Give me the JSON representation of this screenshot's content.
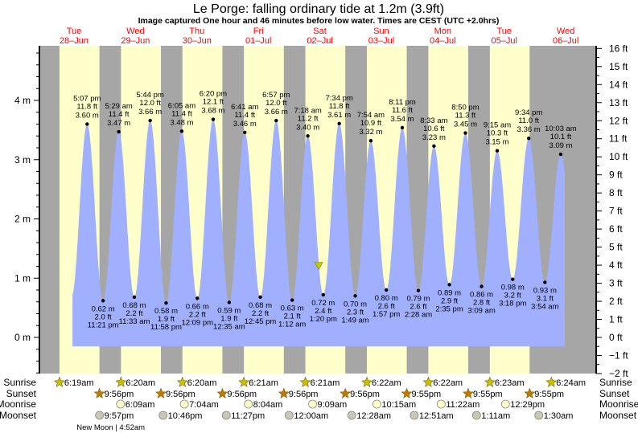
{
  "chart_data": {
    "type": "area",
    "title": "Le Porge: falling  ordinary tide at 1.2m (3.9ft)",
    "subtitle": "Image captured One hour and 46 minutes before low water. Times are CEST (UTC +2.0hrs)",
    "days": [
      {
        "dow": "Tue",
        "date": "28–Jun"
      },
      {
        "dow": "Wed",
        "date": "29–Jun"
      },
      {
        "dow": "Thu",
        "date": "30–Jun"
      },
      {
        "dow": "Fri",
        "date": "01–Jul"
      },
      {
        "dow": "Sat",
        "date": "02–Jul"
      },
      {
        "dow": "Sun",
        "date": "03–Jul"
      },
      {
        "dow": "Mon",
        "date": "04–Jul"
      },
      {
        "dow": "Tue",
        "date": "05–Jul"
      },
      {
        "dow": "Wed",
        "date": "06–Jul"
      }
    ],
    "y_left": {
      "unit": "m",
      "ticks": [
        "0 m",
        "1 m",
        "2 m",
        "3 m",
        "4 m"
      ],
      "range": [
        -0.61,
        4.92
      ]
    },
    "y_right": {
      "unit": "ft",
      "ticks": [
        "−2 ft",
        "−1 ft",
        "0 ft",
        "1 ft",
        "2 ft",
        "3 ft",
        "4 ft",
        "5 ft",
        "6 ft",
        "7 ft",
        "8 ft",
        "9 ft",
        "10 ft",
        "11 ft",
        "12 ft",
        "13 ft",
        "14 ft",
        "15 ft",
        "16 ft"
      ]
    },
    "current_level_m": 1.2,
    "current_time": "11:34am",
    "current_day": 4,
    "extremes": [
      {
        "day": 0,
        "type": "high",
        "time": "5:07 pm",
        "ft": "11.8 ft",
        "m": "3.60 m"
      },
      {
        "day": 0,
        "type": "low",
        "time": "11:21 pm",
        "ft": "2.0 ft",
        "m": "0.62 m"
      },
      {
        "day": 1,
        "type": "high",
        "time": "5:29 am",
        "ft": "11.4 ft",
        "m": "3.47 m"
      },
      {
        "day": 1,
        "type": "low",
        "time": "11:33 am",
        "ft": "2.2 ft",
        "m": "0.68 m"
      },
      {
        "day": 1,
        "type": "high",
        "time": "5:44 pm",
        "ft": "12.0 ft",
        "m": "3.66 m"
      },
      {
        "day": 1,
        "type": "low",
        "time": "11:58 pm",
        "ft": "1.9 ft",
        "m": "0.58 m"
      },
      {
        "day": 2,
        "type": "high",
        "time": "6:05 am",
        "ft": "11.4 ft",
        "m": "3.48 m"
      },
      {
        "day": 2,
        "type": "low",
        "time": "12:09 pm",
        "ft": "2.2 ft",
        "m": "0.66 m"
      },
      {
        "day": 2,
        "type": "high",
        "time": "6:20 pm",
        "ft": "12.1 ft",
        "m": "3.68 m"
      },
      {
        "day": 3,
        "type": "low",
        "time": "12:35 am",
        "ft": "1.9 ft",
        "m": "0.59 m"
      },
      {
        "day": 3,
        "type": "high",
        "time": "6:41 am",
        "ft": "11.4 ft",
        "m": "3.46 m"
      },
      {
        "day": 3,
        "type": "low",
        "time": "12:45 pm",
        "ft": "2.2 ft",
        "m": "0.68 m"
      },
      {
        "day": 3,
        "type": "high",
        "time": "6:57 pm",
        "ft": "12.0 ft",
        "m": "3.66 m"
      },
      {
        "day": 4,
        "type": "low",
        "time": "1:12 am",
        "ft": "2.1 ft",
        "m": "0.63 m"
      },
      {
        "day": 4,
        "type": "high",
        "time": "7:18 am",
        "ft": "11.2 ft",
        "m": "3.40 m"
      },
      {
        "day": 4,
        "type": "low",
        "time": "1:20 pm",
        "ft": "2.4 ft",
        "m": "0.72 m"
      },
      {
        "day": 4,
        "type": "high",
        "time": "7:34 pm",
        "ft": "11.8 ft",
        "m": "3.61 m"
      },
      {
        "day": 5,
        "type": "low",
        "time": "1:49 am",
        "ft": "2.3 ft",
        "m": "0.70 m"
      },
      {
        "day": 5,
        "type": "high",
        "time": "7:54 am",
        "ft": "10.9 ft",
        "m": "3.32 m"
      },
      {
        "day": 5,
        "type": "low",
        "time": "1:57 pm",
        "ft": "2.6 ft",
        "m": "0.80 m"
      },
      {
        "day": 5,
        "type": "high",
        "time": "8:11 pm",
        "ft": "11.6 ft",
        "m": "3.54 m"
      },
      {
        "day": 6,
        "type": "low",
        "time": "2:28 am",
        "ft": "2.6 ft",
        "m": "0.79 m"
      },
      {
        "day": 6,
        "type": "high",
        "time": "8:33 am",
        "ft": "10.6 ft",
        "m": "3.23 m"
      },
      {
        "day": 6,
        "type": "low",
        "time": "2:35 pm",
        "ft": "2.9 ft",
        "m": "0.89 m"
      },
      {
        "day": 6,
        "type": "high",
        "time": "8:50 pm",
        "ft": "11.3 ft",
        "m": "3.45 m"
      },
      {
        "day": 7,
        "type": "low",
        "time": "3:09 am",
        "ft": "2.8 ft",
        "m": "0.86 m"
      },
      {
        "day": 7,
        "type": "high",
        "time": "9:15 am",
        "ft": "10.3 ft",
        "m": "3.15 m"
      },
      {
        "day": 7,
        "type": "low",
        "time": "3:18 pm",
        "ft": "3.2 ft",
        "m": "0.98 m"
      },
      {
        "day": 7,
        "type": "high",
        "time": "9:34 pm",
        "ft": "11.0 ft",
        "m": "3.36 m"
      },
      {
        "day": 8,
        "type": "low",
        "time": "3:54 am",
        "ft": "3.1 ft",
        "m": "0.93 m"
      },
      {
        "day": 8,
        "type": "high",
        "time": "10:03 am",
        "ft": "10.1 ft",
        "m": "3.09 m"
      }
    ],
    "row_labels": {
      "sunrise": "Sunrise",
      "sunset": "Sunset",
      "moonrise": "Moonrise",
      "moonset": "Moonset"
    },
    "sunrise": [
      {
        "day": 0,
        "time": "6:19am"
      },
      {
        "day": 1,
        "time": "6:20am"
      },
      {
        "day": 2,
        "time": "6:20am"
      },
      {
        "day": 3,
        "time": "6:21am"
      },
      {
        "day": 4,
        "time": "6:21am"
      },
      {
        "day": 5,
        "time": "6:22am"
      },
      {
        "day": 6,
        "time": "6:22am"
      },
      {
        "day": 7,
        "time": "6:23am"
      },
      {
        "day": 8,
        "time": "6:24am"
      }
    ],
    "sunset": [
      {
        "day": 0,
        "time": "9:56pm"
      },
      {
        "day": 1,
        "time": "9:56pm"
      },
      {
        "day": 2,
        "time": "9:56pm"
      },
      {
        "day": 3,
        "time": "9:56pm"
      },
      {
        "day": 4,
        "time": "9:56pm"
      },
      {
        "day": 5,
        "time": "9:55pm"
      },
      {
        "day": 6,
        "time": "9:55pm"
      },
      {
        "day": 7,
        "time": "9:55pm"
      }
    ],
    "moonrise": [
      {
        "day": 1,
        "time": "6:09am"
      },
      {
        "day": 2,
        "time": "7:04am"
      },
      {
        "day": 3,
        "time": "8:04am"
      },
      {
        "day": 4,
        "time": "9:09am"
      },
      {
        "day": 5,
        "time": "10:15am"
      },
      {
        "day": 6,
        "time": "11:22am"
      },
      {
        "day": 7,
        "time": "12:29pm"
      }
    ],
    "moonset": [
      {
        "day": 0,
        "time": "9:57pm"
      },
      {
        "day": 1,
        "time": "10:46pm"
      },
      {
        "day": 2,
        "time": "11:27pm"
      },
      {
        "day": 4,
        "time": "12:00am"
      },
      {
        "day": 5,
        "time": "12:28am"
      },
      {
        "day": 6,
        "time": "12:51am"
      },
      {
        "day": 7,
        "time": "1:11am"
      },
      {
        "day": 8,
        "time": "1:30am"
      }
    ],
    "moon_phase": {
      "day": 1,
      "time": "4:52am",
      "label": "New Moon | 4:52am"
    },
    "colors": {
      "water": "#a0b0ff",
      "day": "#ffffcc",
      "night": "#a6a6a6",
      "day_label": "#ff0000",
      "sunrise": "#c8c000",
      "sunset": "#c07800",
      "moonrise": "#ffffcc",
      "moonset": "#c8c8b4",
      "marker": "#c8c800"
    }
  }
}
